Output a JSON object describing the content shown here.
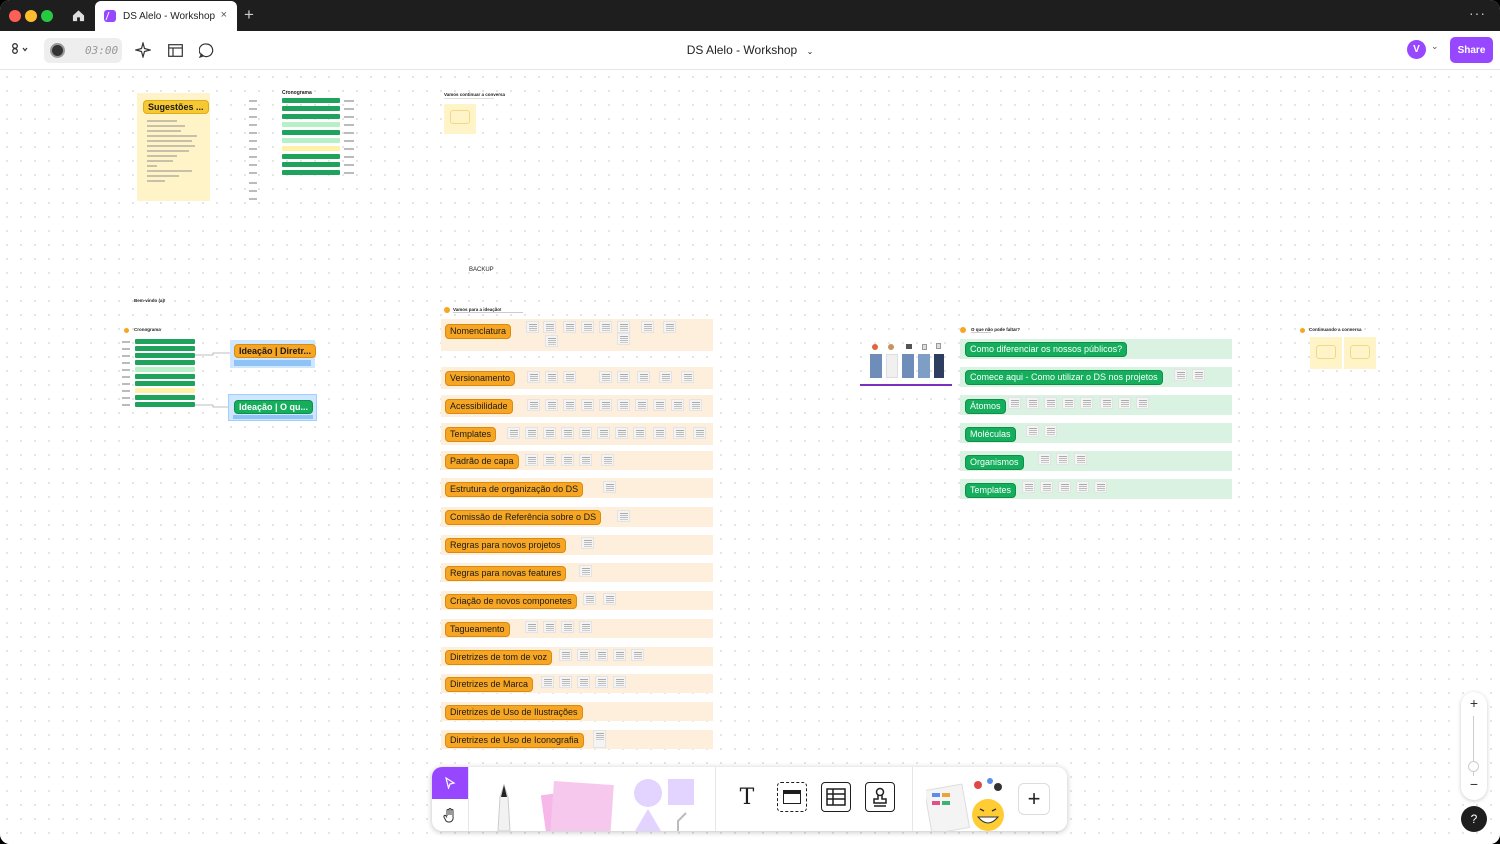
{
  "titlebar": {
    "tab_title": "DS Alelo - Workshop",
    "tab_close": "×",
    "new_tab": "+",
    "more": "···"
  },
  "toolbar": {
    "timer": "03:00",
    "file_title": "DS Alelo - Workshop",
    "avatar_initial": "V",
    "share_label": "Share"
  },
  "canvas": {
    "sugestoes_tag": "Sugestões ...",
    "cronograma_title": "Cronograma",
    "vamos_conversa_title": "Vamos continuar a conversa",
    "backup_label": "BACKUP",
    "boas_vindas_title": "Bem-vindo (a)!",
    "cronograma2_title": "Cronograma",
    "ideacao_tags": [
      "Ideação | Diretr...",
      "Ideação | O qu..."
    ],
    "ideacao_section_title": "Vamos para a ideação!",
    "orange_rows": [
      "Nomenclatura",
      "Versionamento",
      "Acessibilidade",
      "Templates",
      "Padrão de capa",
      "Estrutura de organização do DS",
      "Comissão de Referência sobre o DS",
      "Regras para novos projetos",
      "Regras para novas features",
      "Criação de novos componetes",
      "Tagueamento",
      "Diretrizes de tom de voz",
      "Diretrizes de Marca",
      "Diretrizes de Uso de Ilustrações",
      "Diretrizes de Uso de Iconografia"
    ],
    "green_section_title": "O que não pode faltar?",
    "green_rows": [
      "Como diferenciar os nossos públicos?",
      "Comece aqui - Como utilizar o DS nos projetos",
      "Átomos",
      "Moléculas",
      "Organismos",
      "Templates"
    ],
    "continuando_title": "Continuando a conversa"
  },
  "bottom_toolbar": {
    "text_tool": "T",
    "add": "+"
  },
  "zoom": {
    "zoom_in": "+",
    "zoom_out": "−"
  },
  "help": "?",
  "colors": {
    "accent": "#9747ff",
    "orange_tag": "#f6a623",
    "green_tag": "#14ae5c"
  }
}
